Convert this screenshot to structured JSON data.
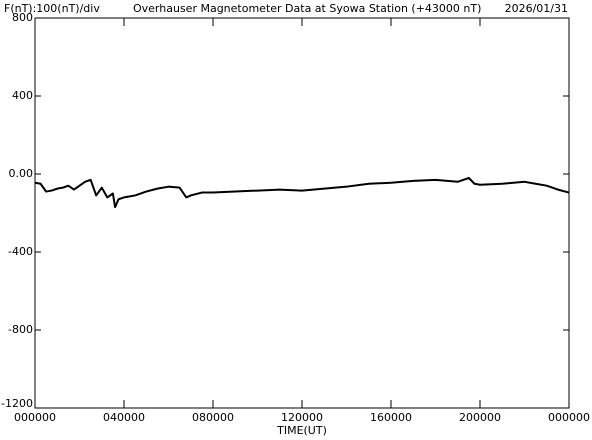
{
  "chart_data": {
    "type": "line",
    "title": "Overhauser Magnetometer Data at Syowa Station (+43000 nT)",
    "scale_label": "F(nT):100(nT)/div",
    "date": "2026/01/31",
    "x_label": "TIME(UT)",
    "x": [
      0,
      0.25,
      0.5,
      0.75,
      1,
      1.25,
      1.5,
      1.75,
      2,
      2.25,
      2.5,
      2.75,
      3,
      3.25,
      3.5,
      3.6,
      3.75,
      4,
      4.5,
      5,
      5.5,
      6,
      6.5,
      6.8,
      7,
      7.5,
      8,
      9,
      10,
      11,
      12,
      13,
      14,
      15,
      16,
      17,
      18,
      19,
      19.5,
      19.75,
      20,
      21,
      22,
      22.5,
      23,
      23.5,
      24
    ],
    "series": [
      {
        "name": "F",
        "color": "#000000",
        "values": [
          -45,
          -50,
          -90,
          -85,
          -75,
          -70,
          -60,
          -80,
          -60,
          -40,
          -30,
          -110,
          -70,
          -120,
          -100,
          -170,
          -130,
          -120,
          -110,
          -90,
          -75,
          -65,
          -70,
          -120,
          -110,
          -95,
          -95,
          -90,
          -85,
          -80,
          -85,
          -75,
          -65,
          -50,
          -45,
          -35,
          -30,
          -40,
          -20,
          -50,
          -55,
          -50,
          -40,
          -50,
          -60,
          -80,
          -95
        ]
      }
    ],
    "xlim": [
      0,
      24
    ],
    "xticks": [
      {
        "value": 0,
        "label": "000000"
      },
      {
        "value": 4,
        "label": "040000"
      },
      {
        "value": 8,
        "label": "080000"
      },
      {
        "value": 12,
        "label": "120000"
      },
      {
        "value": 16,
        "label": "160000"
      },
      {
        "value": 20,
        "label": "200000"
      },
      {
        "value": 24,
        "label": "000000"
      }
    ],
    "ylim": [
      -1200,
      800
    ],
    "yticks": [
      800,
      400,
      {
        "value": 0,
        "label": "0.00"
      },
      -400,
      -800,
      -1200
    ]
  }
}
